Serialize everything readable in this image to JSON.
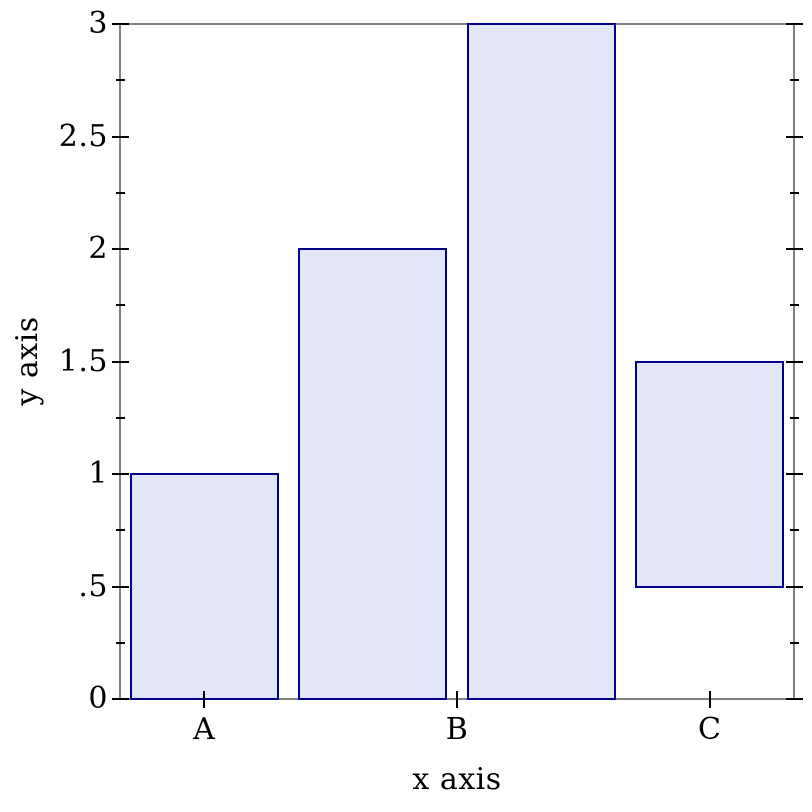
{
  "chart_data": {
    "type": "bar",
    "title": "",
    "xlabel": "x axis",
    "ylabel": "y axis",
    "ylim": [
      0,
      3
    ],
    "grid": false,
    "legend": "none",
    "slots": 4,
    "gap_fraction": 0.125,
    "y_major_ticks": [
      {
        "value": 0,
        "label": "0"
      },
      {
        "value": 0.5,
        "label": ".5"
      },
      {
        "value": 1,
        "label": "1"
      },
      {
        "value": 1.5,
        "label": "1.5"
      },
      {
        "value": 2,
        "label": "2"
      },
      {
        "value": 2.5,
        "label": "2.5"
      },
      {
        "value": 3,
        "label": "3"
      }
    ],
    "y_minor_ticks": [
      0.25,
      0.75,
      1.25,
      1.75,
      2.25,
      2.75
    ],
    "x_ticks": [
      {
        "slot_pos": 0.5,
        "label": "A"
      },
      {
        "slot_pos": 2.0,
        "label": "B"
      },
      {
        "slot_pos": 3.5,
        "label": "C"
      }
    ],
    "bars": [
      {
        "category": "A",
        "slot": 0,
        "y0": 0,
        "y1": 1
      },
      {
        "category": "B",
        "slot": 1,
        "y0": 0,
        "y1": 2
      },
      {
        "category": "B",
        "slot": 2,
        "y0": 0,
        "y1": 3
      },
      {
        "category": "C",
        "slot": 3,
        "y0": 0.5,
        "y1": 1.5
      }
    ],
    "colors": {
      "bar_fill": "#e3e5f8",
      "bar_border": "#00008b",
      "frame": "#808080",
      "tick": "#000000",
      "text": "#000000"
    }
  }
}
